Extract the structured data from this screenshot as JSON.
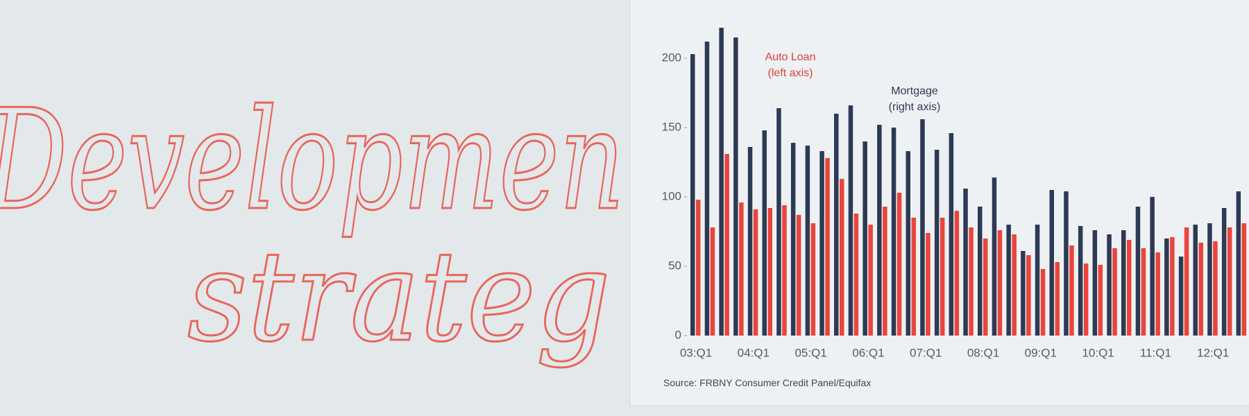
{
  "handwriting": [
    "Developmen",
    "strateg"
  ],
  "chart_data": {
    "type": "bar",
    "annotations": [
      "Auto Loan",
      "(left axis)",
      "Mortgage",
      "(right axis)"
    ],
    "source": "Source: FRBNY Consumer Credit Panel/Equifax",
    "categories": [
      "03:Q1",
      null,
      null,
      null,
      "04:Q1",
      null,
      null,
      null,
      "05:Q1",
      null,
      null,
      null,
      "06:Q1",
      null,
      null,
      null,
      "07:Q1",
      null,
      null,
      null,
      "08:Q1",
      null,
      null,
      null,
      "09:Q1",
      null,
      null,
      null,
      "10:Q1",
      null,
      null,
      null,
      "11:Q1",
      null,
      null,
      null,
      "12:Q1",
      null,
      null
    ],
    "series": [
      {
        "name": "Mortgage",
        "color": "#2c3a55",
        "values": [
          203,
          212,
          222,
          215,
          136,
          148,
          164,
          139,
          137,
          133,
          160,
          166,
          140,
          152,
          150,
          133,
          156,
          134,
          146,
          106,
          93,
          114,
          80,
          61,
          80,
          105,
          104,
          79,
          76,
          73,
          76,
          93,
          100,
          70,
          57,
          80,
          81,
          92,
          104
        ]
      },
      {
        "name": "Auto Loan",
        "color": "#e8453c",
        "values": [
          98,
          78,
          131,
          96,
          91,
          92,
          94,
          87,
          81,
          128,
          113,
          88,
          80,
          93,
          103,
          85,
          74,
          85,
          90,
          78,
          70,
          76,
          73,
          58,
          48,
          53,
          65,
          52,
          51,
          63,
          69,
          63,
          60,
          71,
          78,
          67,
          68,
          78,
          81
        ]
      }
    ],
    "ylim": [
      0,
      230
    ],
    "yticks": [
      0,
      50,
      100,
      150,
      200
    ]
  }
}
